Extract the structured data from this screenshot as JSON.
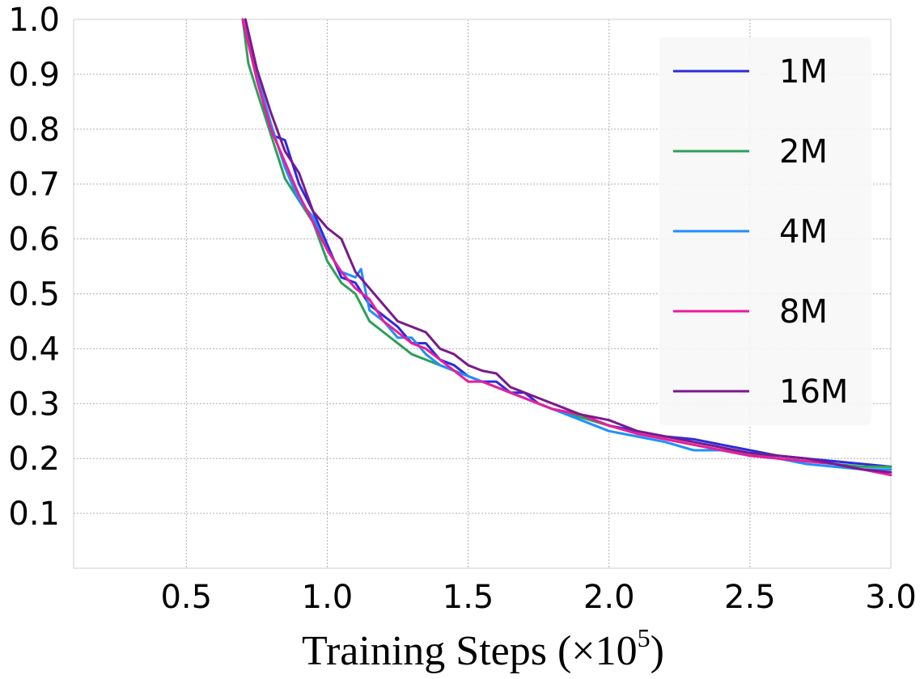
{
  "chart_data": {
    "type": "line",
    "title": "",
    "xlabel": "Training Steps (×10",
    "xlabel_exponent": "5",
    "xlabel_close": ")",
    "ylabel": "",
    "xlim": [
      0.1,
      3.0
    ],
    "ylim": [
      0.0,
      1.0
    ],
    "grid": true,
    "legend_position": "top-right",
    "x_ticks": [
      {
        "value": 0.5,
        "label": "0.5"
      },
      {
        "value": 1.0,
        "label": "1.0"
      },
      {
        "value": 1.5,
        "label": "1.5"
      },
      {
        "value": 2.0,
        "label": "2.0"
      },
      {
        "value": 2.5,
        "label": "2.5"
      },
      {
        "value": 3.0,
        "label": "3.0"
      }
    ],
    "y_ticks": [
      {
        "value": 0.1,
        "label": "0.1"
      },
      {
        "value": 0.2,
        "label": "0.2"
      },
      {
        "value": 0.3,
        "label": "0.3"
      },
      {
        "value": 0.4,
        "label": "0.4"
      },
      {
        "value": 0.5,
        "label": "0.5"
      },
      {
        "value": 0.6,
        "label": "0.6"
      },
      {
        "value": 0.7,
        "label": "0.7"
      },
      {
        "value": 0.8,
        "label": "0.8"
      },
      {
        "value": 0.9,
        "label": "0.9"
      },
      {
        "value": 1.0,
        "label": "1.0"
      }
    ],
    "series": [
      {
        "name": "1M",
        "color": "#2b2be0",
        "x": [
          0.7,
          0.75,
          0.8,
          0.85,
          0.9,
          0.95,
          1.0,
          1.05,
          1.1,
          1.15,
          1.2,
          1.25,
          1.3,
          1.35,
          1.4,
          1.45,
          1.5,
          1.55,
          1.6,
          1.65,
          1.7,
          1.75,
          1.8,
          1.9,
          2.0,
          2.1,
          2.2,
          2.3,
          2.4,
          2.5,
          2.6,
          2.7,
          2.8,
          2.9,
          3.0
        ],
        "y": [
          1.0,
          0.9,
          0.79,
          0.78,
          0.7,
          0.65,
          0.59,
          0.53,
          0.52,
          0.48,
          0.46,
          0.44,
          0.41,
          0.41,
          0.38,
          0.37,
          0.35,
          0.34,
          0.34,
          0.32,
          0.32,
          0.3,
          0.29,
          0.28,
          0.26,
          0.25,
          0.24,
          0.235,
          0.225,
          0.215,
          0.205,
          0.2,
          0.195,
          0.19,
          0.185
        ]
      },
      {
        "name": "2M",
        "color": "#2ca05a",
        "x": [
          0.7,
          0.72,
          0.75,
          0.8,
          0.85,
          0.9,
          0.95,
          1.0,
          1.05,
          1.1,
          1.15,
          1.2,
          1.25,
          1.3,
          1.35,
          1.4,
          1.45,
          1.5,
          1.55,
          1.6,
          1.65,
          1.7,
          1.8,
          1.9,
          2.0,
          2.1,
          2.2,
          2.3,
          2.4,
          2.5,
          2.6,
          2.7,
          2.8,
          2.9,
          3.0
        ],
        "y": [
          1.0,
          0.92,
          0.87,
          0.79,
          0.71,
          0.67,
          0.63,
          0.56,
          0.52,
          0.5,
          0.45,
          0.43,
          0.41,
          0.39,
          0.38,
          0.37,
          0.36,
          0.35,
          0.34,
          0.33,
          0.32,
          0.31,
          0.29,
          0.275,
          0.26,
          0.245,
          0.235,
          0.225,
          0.215,
          0.21,
          0.2,
          0.195,
          0.19,
          0.185,
          0.185
        ]
      },
      {
        "name": "4M",
        "color": "#1e90ff",
        "x": [
          0.7,
          0.75,
          0.8,
          0.85,
          0.9,
          0.95,
          1.0,
          1.05,
          1.1,
          1.12,
          1.15,
          1.2,
          1.25,
          1.3,
          1.35,
          1.4,
          1.45,
          1.5,
          1.55,
          1.6,
          1.65,
          1.7,
          1.8,
          1.9,
          2.0,
          2.1,
          2.2,
          2.3,
          2.4,
          2.5,
          2.6,
          2.7,
          2.8,
          2.9,
          3.0
        ],
        "y": [
          1.0,
          0.9,
          0.81,
          0.73,
          0.67,
          0.64,
          0.58,
          0.54,
          0.53,
          0.545,
          0.47,
          0.45,
          0.42,
          0.42,
          0.39,
          0.37,
          0.36,
          0.35,
          0.34,
          0.33,
          0.32,
          0.31,
          0.29,
          0.27,
          0.25,
          0.24,
          0.23,
          0.215,
          0.215,
          0.205,
          0.2,
          0.19,
          0.185,
          0.18,
          0.18
        ]
      },
      {
        "name": "8M",
        "color": "#ee1a9c",
        "x": [
          0.7,
          0.75,
          0.8,
          0.85,
          0.9,
          0.95,
          1.0,
          1.05,
          1.1,
          1.15,
          1.2,
          1.25,
          1.3,
          1.35,
          1.4,
          1.45,
          1.5,
          1.55,
          1.6,
          1.65,
          1.7,
          1.8,
          1.9,
          2.0,
          2.1,
          2.2,
          2.3,
          2.4,
          2.5,
          2.6,
          2.7,
          2.8,
          2.9,
          3.0
        ],
        "y": [
          1.0,
          0.89,
          0.8,
          0.74,
          0.68,
          0.63,
          0.58,
          0.54,
          0.51,
          0.49,
          0.45,
          0.43,
          0.41,
          0.4,
          0.38,
          0.36,
          0.34,
          0.34,
          0.33,
          0.32,
          0.31,
          0.29,
          0.28,
          0.26,
          0.245,
          0.235,
          0.225,
          0.215,
          0.205,
          0.2,
          0.195,
          0.19,
          0.18,
          0.17
        ]
      },
      {
        "name": "16M",
        "color": "#7a1a8c",
        "x": [
          0.71,
          0.75,
          0.8,
          0.85,
          0.9,
          0.95,
          1.0,
          1.05,
          1.1,
          1.15,
          1.2,
          1.25,
          1.3,
          1.35,
          1.4,
          1.45,
          1.5,
          1.55,
          1.6,
          1.65,
          1.7,
          1.75,
          1.8,
          1.9,
          2.0,
          2.1,
          2.2,
          2.3,
          2.4,
          2.5,
          2.6,
          2.7,
          2.8,
          2.9,
          3.0
        ],
        "y": [
          1.0,
          0.91,
          0.83,
          0.76,
          0.72,
          0.65,
          0.62,
          0.6,
          0.54,
          0.51,
          0.48,
          0.45,
          0.44,
          0.43,
          0.4,
          0.39,
          0.37,
          0.36,
          0.355,
          0.33,
          0.32,
          0.31,
          0.3,
          0.28,
          0.27,
          0.25,
          0.24,
          0.23,
          0.22,
          0.21,
          0.205,
          0.2,
          0.19,
          0.18,
          0.175
        ]
      }
    ]
  }
}
